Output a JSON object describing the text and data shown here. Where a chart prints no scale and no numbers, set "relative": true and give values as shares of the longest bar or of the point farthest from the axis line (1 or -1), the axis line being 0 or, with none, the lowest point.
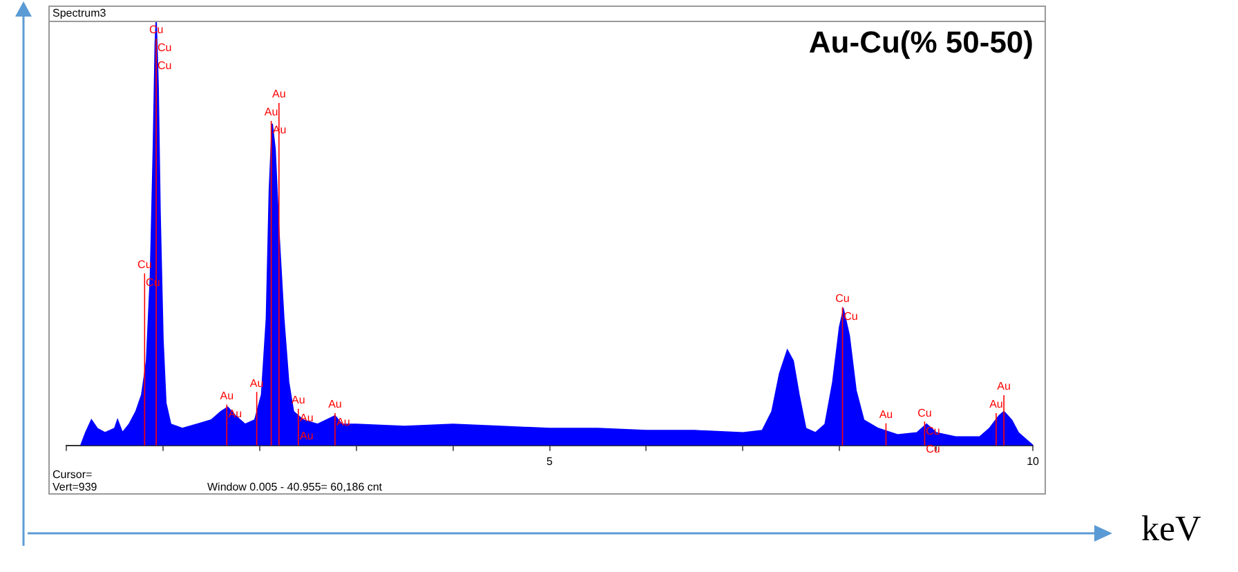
{
  "chart_data": {
    "type": "area",
    "title": "Au-Cu(% 50-50)",
    "subtitle": "Spectrum3",
    "xlabel": "keV",
    "relative": true,
    "color": "#0000ff",
    "grid": false,
    "legend": false,
    "marker": "none",
    "xlim": [
      0,
      10
    ],
    "xticks": [
      {
        "value": 0,
        "label": null
      },
      {
        "value": 1,
        "label": null
      },
      {
        "value": 2,
        "label": null
      },
      {
        "value": 3,
        "label": null
      },
      {
        "value": 4,
        "label": null
      },
      5,
      {
        "value": 6,
        "label": null
      },
      {
        "value": 7,
        "label": null
      },
      {
        "value": 8,
        "label": null
      },
      {
        "value": 9,
        "label": null
      },
      10
    ],
    "x": [
      0.15,
      0.2,
      0.26,
      0.32,
      0.4,
      0.5,
      0.53,
      0.58,
      0.65,
      0.72,
      0.78,
      0.83,
      0.87,
      0.9,
      0.92,
      0.93,
      0.95,
      0.97,
      1.0,
      1.03,
      1.08,
      1.2,
      1.35,
      1.5,
      1.6,
      1.67,
      1.75,
      1.85,
      1.95,
      2.02,
      2.07,
      2.1,
      2.13,
      2.16,
      2.2,
      2.25,
      2.3,
      2.35,
      2.45,
      2.6,
      2.78,
      2.85,
      3.0,
      3.5,
      4.0,
      4.5,
      5.0,
      5.5,
      6.0,
      6.5,
      7.0,
      7.2,
      7.3,
      7.38,
      7.46,
      7.52,
      7.58,
      7.65,
      7.75,
      7.85,
      7.93,
      8.0,
      8.04,
      8.1,
      8.17,
      8.25,
      8.4,
      8.6,
      8.8,
      8.9,
      9.0,
      9.2,
      9.45,
      9.55,
      9.65,
      9.7,
      9.78,
      9.85,
      9.95,
      10
    ],
    "values": [
      0,
      0.03,
      0.06,
      0.04,
      0.03,
      0.04,
      0.06,
      0.03,
      0.05,
      0.08,
      0.12,
      0.2,
      0.4,
      0.7,
      0.95,
      1.0,
      0.85,
      0.55,
      0.25,
      0.1,
      0.05,
      0.04,
      0.05,
      0.06,
      0.08,
      0.09,
      0.07,
      0.05,
      0.06,
      0.12,
      0.3,
      0.6,
      0.76,
      0.7,
      0.5,
      0.3,
      0.15,
      0.08,
      0.06,
      0.05,
      0.07,
      0.05,
      0.05,
      0.045,
      0.05,
      0.045,
      0.04,
      0.04,
      0.035,
      0.035,
      0.03,
      0.035,
      0.08,
      0.17,
      0.225,
      0.2,
      0.12,
      0.04,
      0.03,
      0.05,
      0.15,
      0.28,
      0.32,
      0.26,
      0.13,
      0.06,
      0.04,
      0.025,
      0.03,
      0.05,
      0.03,
      0.02,
      0.02,
      0.04,
      0.07,
      0.08,
      0.06,
      0.03,
      0.01,
      0
    ],
    "ref_lines": [
      {
        "axis": "x",
        "value": 0.93,
        "label": "Cu",
        "color": "#ff0000"
      },
      {
        "axis": "x",
        "value": 0.81,
        "label": "Cu",
        "color": "#ff0000"
      },
      {
        "axis": "x",
        "value": 1.66,
        "label": "Au",
        "color": "#ff0000"
      },
      {
        "axis": "x",
        "value": 1.97,
        "label": "Au",
        "color": "#ff0000"
      },
      {
        "axis": "x",
        "value": 2.12,
        "label": "Au",
        "color": "#ff0000"
      },
      {
        "axis": "x",
        "value": 2.2,
        "label": "Au",
        "color": "#ff0000"
      },
      {
        "axis": "x",
        "value": 2.4,
        "label": "Au",
        "color": "#ff0000"
      },
      {
        "axis": "x",
        "value": 2.78,
        "label": "Au",
        "color": "#ff0000"
      },
      {
        "axis": "x",
        "value": 8.03,
        "label": "Cu",
        "color": "#ff0000"
      },
      {
        "axis": "x",
        "value": 8.48,
        "label": "Au",
        "color": "#ff0000"
      },
      {
        "axis": "x",
        "value": 8.88,
        "label": "Cu",
        "color": "#ff0000"
      },
      {
        "axis": "x",
        "value": 9.62,
        "label": "Au",
        "color": "#ff0000"
      },
      {
        "axis": "x",
        "value": 9.7,
        "label": "Au",
        "color": "#ff0000"
      }
    ],
    "annotations": [
      {
        "text": "Cu",
        "x": 0.93
      },
      {
        "text": "Cu",
        "x": 0.93
      },
      {
        "text": "Cu",
        "x": 0.81
      },
      {
        "text": "Au",
        "x": 1.66
      },
      {
        "text": "Au",
        "x": 2.12
      },
      {
        "text": "Au",
        "x": 2.4
      },
      {
        "text": "Au",
        "x": 2.4
      },
      {
        "text": "Au",
        "x": 2.78
      },
      {
        "text": "Cu",
        "x": 8.03
      },
      {
        "text": "Cu",
        "x": 8.88
      },
      {
        "text": "Cu",
        "x": 8.88
      },
      "Cursor=",
      "Vert=939",
      "Window 0.005 - 40.955=   60,186 cnt"
    ]
  }
}
